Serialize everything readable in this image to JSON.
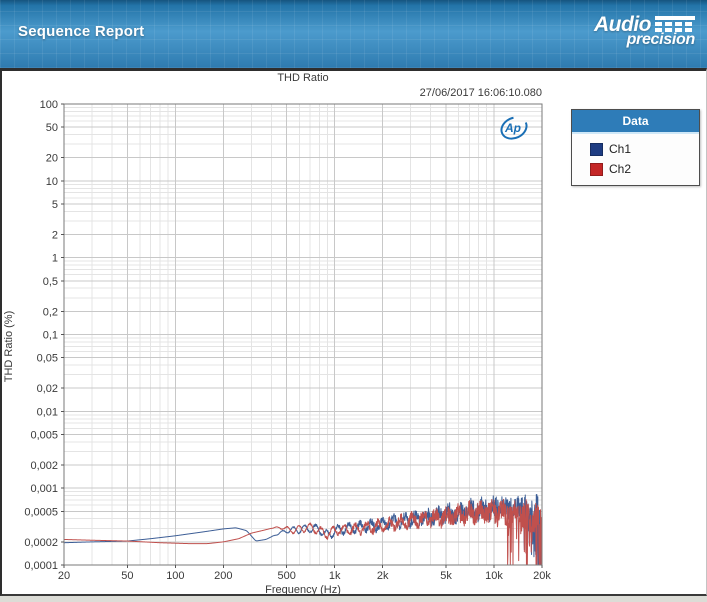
{
  "header": {
    "title": "Sequence Report",
    "brand": {
      "line1": "Audio",
      "line2": "precision"
    }
  },
  "chart": {
    "title": "THD Ratio",
    "timestamp": "27/06/2017 16:06:10.080",
    "watermark": "Ap",
    "xlabel": "Frequency (Hz)",
    "ylabel": "THD Ratio (%)"
  },
  "legend": {
    "title": "Data",
    "series": [
      {
        "label": "Ch1",
        "color": "#1e3c82"
      },
      {
        "label": "Ch2",
        "color": "#c42626"
      }
    ]
  },
  "chart_data": {
    "type": "line",
    "title": "THD Ratio",
    "xlabel": "Frequency (Hz)",
    "ylabel": "THD Ratio (%)",
    "x_scale": "log",
    "y_scale": "log",
    "xlim": [
      20,
      20000
    ],
    "ylim": [
      0.0001,
      100
    ],
    "grid": true,
    "legend_position": "right",
    "x_ticks_labeled": [
      20,
      50,
      100,
      200,
      500,
      1000,
      2000,
      5000,
      10000,
      20000
    ],
    "x_tick_labels": [
      "20",
      "50",
      "100",
      "200",
      "500",
      "1k",
      "2k",
      "5k",
      "10k",
      "20k"
    ],
    "x_ticks_minor": [
      30,
      40,
      60,
      70,
      80,
      90,
      300,
      400,
      600,
      700,
      800,
      900,
      3000,
      4000,
      6000,
      7000,
      8000,
      9000
    ],
    "y_ticks_labeled": [
      100,
      50,
      20,
      10,
      5,
      2,
      1,
      0.5,
      0.2,
      0.1,
      0.05,
      0.02,
      0.01,
      0.005,
      0.002,
      0.001,
      0.0005,
      0.0002,
      0.0001
    ],
    "y_tick_labels": [
      "100",
      "50",
      "20",
      "10",
      "5",
      "2",
      "1",
      "0,5",
      "0,2",
      "0,1",
      "0,05",
      "0,02",
      "0,01",
      "0,005",
      "0,002",
      "0,001",
      "0,0005",
      "0,0002",
      "0,0001"
    ],
    "y_minor_mantissas": [
      3,
      4,
      6,
      7,
      8,
      9
    ],
    "grid_color_major": "#c8c8c8",
    "grid_color_minor": "#e4e4e4",
    "frame_color": "#7a7a7a",
    "series": [
      {
        "name": "Ch1",
        "line_color": "#3d5e96",
        "anchors": [
          [
            20,
            0.000195
          ],
          [
            30,
            0.0002
          ],
          [
            50,
            0.000205
          ],
          [
            70,
            0.00022
          ],
          [
            100,
            0.00024
          ],
          [
            150,
            0.00027
          ],
          [
            200,
            0.000295
          ],
          [
            240,
            0.000305
          ],
          [
            280,
            0.00028
          ],
          [
            320,
            0.000205
          ],
          [
            370,
            0.000215
          ],
          [
            430,
            0.00025
          ],
          [
            500,
            0.00028
          ],
          [
            600,
            0.00029
          ],
          [
            700,
            0.0003
          ],
          [
            800,
            0.00029
          ],
          [
            900,
            0.00024
          ],
          [
            1000,
            0.00028
          ],
          [
            1200,
            0.0003
          ],
          [
            1500,
            0.00031
          ],
          [
            2000,
            0.00034
          ],
          [
            3000,
            0.0004
          ],
          [
            4000,
            0.00043
          ],
          [
            5000,
            0.00045
          ],
          [
            7000,
            0.0005
          ],
          [
            10000,
            0.00055
          ],
          [
            14000,
            0.00055
          ],
          [
            20000,
            0.0005
          ]
        ],
        "noise": {
          "seed": 7,
          "wiggle_freq": 90,
          "wiggle_phase": 0,
          "wiggle_amp": [
            [
              400,
              0
            ],
            [
              600,
              0.05
            ],
            [
              1000,
              0.055
            ],
            [
              2000,
              0.06
            ],
            [
              4000,
              0.05
            ],
            [
              20000,
              0.04
            ]
          ],
          "amp": [
            [
              400,
              0
            ],
            [
              700,
              0.015
            ],
            [
              1000,
              0.025
            ],
            [
              2000,
              0.05
            ],
            [
              4000,
              0.09
            ],
            [
              8000,
              0.13
            ],
            [
              13000,
              0.17
            ],
            [
              20000,
              0.2
            ]
          ],
          "spike_start": 13500,
          "spike_prob": 0.16,
          "spike_depth": 0.45
        }
      },
      {
        "name": "Ch2",
        "line_color": "#c0504d",
        "anchors": [
          [
            20,
            0.000215
          ],
          [
            30,
            0.00021
          ],
          [
            50,
            0.000205
          ],
          [
            80,
            0.000195
          ],
          [
            120,
            0.00019
          ],
          [
            160,
            0.00019
          ],
          [
            200,
            0.0002
          ],
          [
            250,
            0.00022
          ],
          [
            300,
            0.00026
          ],
          [
            350,
            0.00028
          ],
          [
            400,
            0.0003
          ],
          [
            450,
            0.00031
          ],
          [
            500,
            0.000295
          ],
          [
            560,
            0.00028
          ],
          [
            620,
            0.0003
          ],
          [
            700,
            0.00031
          ],
          [
            800,
            0.00028
          ],
          [
            900,
            0.00025
          ],
          [
            1000,
            0.00028
          ],
          [
            1200,
            0.00029
          ],
          [
            1500,
            0.0003
          ],
          [
            2000,
            0.00032
          ],
          [
            3000,
            0.00038
          ],
          [
            4000,
            0.0004
          ],
          [
            5000,
            0.00042
          ],
          [
            7000,
            0.00047
          ],
          [
            10000,
            0.0005
          ],
          [
            14000,
            0.00045
          ],
          [
            20000,
            0.0004
          ]
        ],
        "noise": {
          "seed": 99,
          "wiggle_freq": 88,
          "wiggle_phase": 2.6,
          "wiggle_amp": [
            [
              400,
              0
            ],
            [
              600,
              0.05
            ],
            [
              1000,
              0.055
            ],
            [
              2000,
              0.06
            ],
            [
              4000,
              0.05
            ],
            [
              20000,
              0.045
            ]
          ],
          "amp": [
            [
              400,
              0
            ],
            [
              700,
              0.015
            ],
            [
              1000,
              0.025
            ],
            [
              2000,
              0.05
            ],
            [
              4000,
              0.09
            ],
            [
              8000,
              0.13
            ],
            [
              13000,
              0.17
            ],
            [
              20000,
              0.2
            ]
          ],
          "spike_start": 11500,
          "spike_prob": 0.2,
          "spike_depth": 0.55
        }
      }
    ]
  }
}
